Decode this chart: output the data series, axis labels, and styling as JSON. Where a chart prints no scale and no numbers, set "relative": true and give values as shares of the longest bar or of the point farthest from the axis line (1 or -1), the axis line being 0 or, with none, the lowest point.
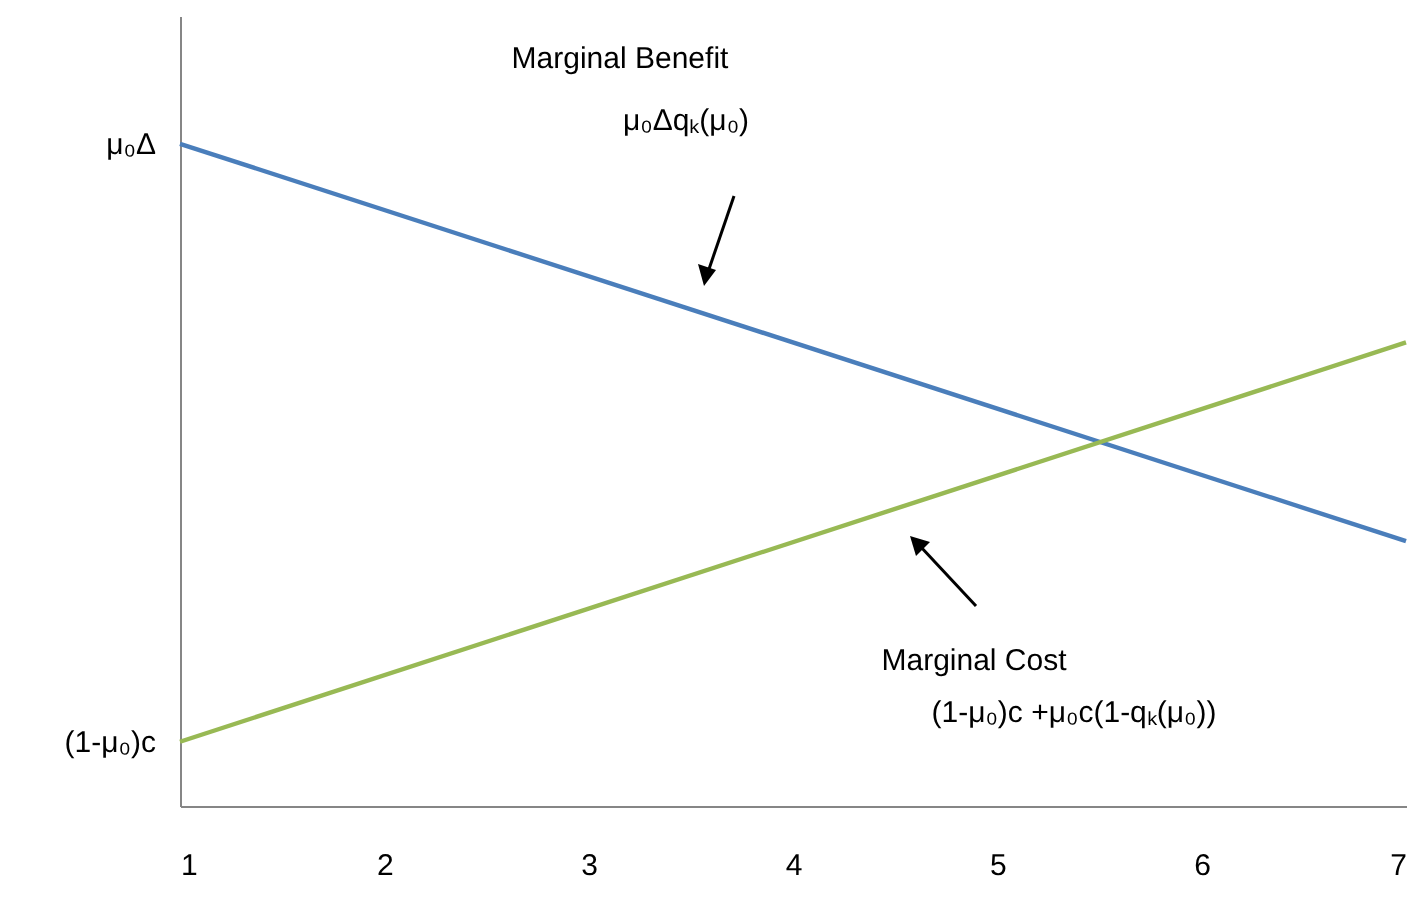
{
  "chart_data": {
    "type": "line",
    "relative": true,
    "x": [
      1,
      7
    ],
    "series": [
      {
        "color": "#4a7ebb",
        "values": [
          1,
          0.4
        ]
      },
      {
        "color": "#98b954",
        "values": [
          0.097,
          0.7
        ]
      }
    ],
    "xlim": [
      1,
      7
    ],
    "xticks": [
      1,
      2,
      3,
      4,
      5,
      6,
      7
    ],
    "grid": false,
    "marker": "none",
    "line_style": "solid",
    "annotations": [
      "Marginal Benefit",
      "μ₀Δqₖ(μ₀)",
      "Marginal Cost",
      "(1-μ₀)c +μ₀c(1-qₖ(μ₀))",
      {
        "text": "μ₀Δ",
        "x": 1,
        "y": 1
      },
      {
        "text": "(1-μ₀)c",
        "x": 1,
        "y": 0.097
      }
    ]
  }
}
